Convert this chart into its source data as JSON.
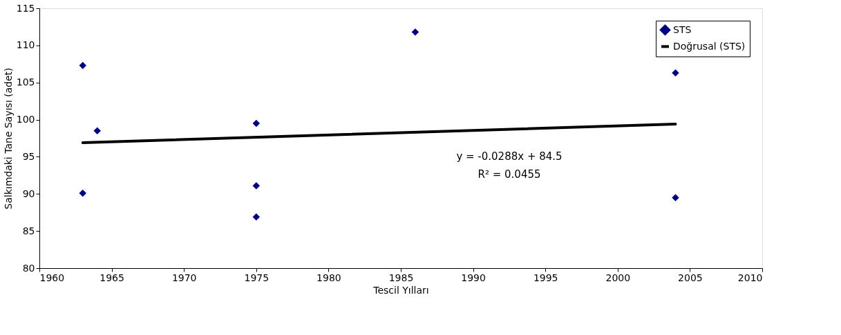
{
  "chart_data": {
    "type": "scatter",
    "xlabel": "Tescil Yılları",
    "ylabel": "Salkımdaki Tane Sayısı (adet)",
    "xlim": [
      1960,
      2010
    ],
    "xticks": [
      1960,
      1965,
      1970,
      1975,
      1980,
      1985,
      1990,
      1995,
      2000,
      2005,
      2010
    ],
    "ylim": [
      80,
      115
    ],
    "yticks": [
      80,
      85,
      90,
      95,
      100,
      105,
      110,
      115
    ],
    "grid": false,
    "legend": "top right",
    "series": [
      {
        "name": "STS",
        "color": "#000080",
        "marker": "diamond",
        "x": [
          1963,
          1963,
          1964,
          1975,
          1975,
          1975,
          1986,
          2004,
          2004
        ],
        "values": [
          107.3,
          90.1,
          98.5,
          99.5,
          91.1,
          86.9,
          111.8,
          106.3,
          89.5
        ]
      },
      {
        "name": "Doğrusal (STS)",
        "color": "#000000",
        "type": "line",
        "marker": "none",
        "line_style": "solid",
        "x": [
          1963,
          2004
        ],
        "values": [
          96.9,
          99.4
        ]
      }
    ],
    "annotations": [
      "y = -0.0288x + 84.5",
      "R² = 0.0455"
    ]
  }
}
